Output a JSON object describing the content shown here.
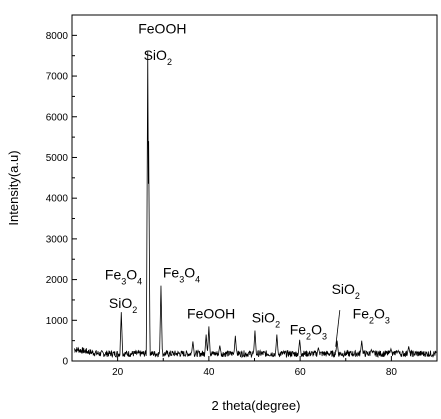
{
  "chart_data": {
    "type": "line",
    "xlabel": "2 theta(degree)",
    "ylabel": "Intensity(a.u)",
    "xlim": [
      10,
      90
    ],
    "ylim": [
      0,
      8500
    ],
    "x_ticks": [
      20,
      40,
      60,
      80
    ],
    "y_ticks": [
      0,
      1000,
      2000,
      3000,
      4000,
      5000,
      6000,
      7000,
      8000
    ],
    "x_tick_labels": [
      "20",
      "40",
      "60",
      "80"
    ],
    "y_tick_labels": [
      "0",
      "1000",
      "2000",
      "3000",
      "4000",
      "5000",
      "6000",
      "7000",
      "8000"
    ],
    "grid": false,
    "baseline_level": 180,
    "peaks": [
      {
        "x": 20.8,
        "y": 1200
      },
      {
        "x": 26.6,
        "y": 7600
      },
      {
        "x": 26.8,
        "y": 5400
      },
      {
        "x": 29.5,
        "y": 1850
      },
      {
        "x": 36.5,
        "y": 480
      },
      {
        "x": 39.4,
        "y": 650
      },
      {
        "x": 40.0,
        "y": 850
      },
      {
        "x": 42.4,
        "y": 380
      },
      {
        "x": 45.8,
        "y": 620
      },
      {
        "x": 50.1,
        "y": 750
      },
      {
        "x": 54.9,
        "y": 650
      },
      {
        "x": 59.9,
        "y": 520
      },
      {
        "x": 64.0,
        "y": 330
      },
      {
        "x": 68.1,
        "y": 500
      },
      {
        "x": 73.5,
        "y": 500
      },
      {
        "x": 75.6,
        "y": 280
      },
      {
        "x": 79.9,
        "y": 300
      },
      {
        "x": 81.5,
        "y": 260
      },
      {
        "x": 83.8,
        "y": 360
      }
    ],
    "annotations": [
      {
        "parts": [
          {
            "t": "FeOOH",
            "sub": false
          }
        ],
        "x": 29.8,
        "y": 8050
      },
      {
        "parts": [
          {
            "t": "SiO",
            "sub": false
          },
          {
            "t": "2",
            "sub": true
          }
        ],
        "x": 28.8,
        "y": 7400
      },
      {
        "parts": [
          {
            "t": "Fe",
            "sub": false
          },
          {
            "t": "3",
            "sub": true
          },
          {
            "t": "O",
            "sub": false
          },
          {
            "t": "4",
            "sub": true
          }
        ],
        "x": 21.3,
        "y": 2000
      },
      {
        "parts": [
          {
            "t": "SiO",
            "sub": false
          },
          {
            "t": "2",
            "sub": true
          }
        ],
        "x": 21.2,
        "y": 1300
      },
      {
        "parts": [
          {
            "t": "Fe",
            "sub": false
          },
          {
            "t": "3",
            "sub": true
          },
          {
            "t": "O",
            "sub": false
          },
          {
            "t": "4",
            "sub": true
          }
        ],
        "x": 34.0,
        "y": 2050
      },
      {
        "parts": [
          {
            "t": "FeOOH",
            "sub": false
          }
        ],
        "x": 40.5,
        "y": 1050
      },
      {
        "parts": [
          {
            "t": "SiO",
            "sub": false
          },
          {
            "t": "2",
            "sub": true
          }
        ],
        "x": 52.5,
        "y": 950
      },
      {
        "parts": [
          {
            "t": "Fe",
            "sub": false
          },
          {
            "t": "2",
            "sub": true
          },
          {
            "t": "O",
            "sub": false
          },
          {
            "t": "3",
            "sub": true
          }
        ],
        "x": 61.8,
        "y": 650
      },
      {
        "parts": [
          {
            "t": "SiO",
            "sub": false
          },
          {
            "t": "2",
            "sub": true
          }
        ],
        "x": 70.0,
        "y": 1650
      },
      {
        "parts": [
          {
            "t": "Fe",
            "sub": false
          },
          {
            "t": "2",
            "sub": true
          },
          {
            "t": "O",
            "sub": false
          },
          {
            "t": "3",
            "sub": true
          }
        ],
        "x": 75.6,
        "y": 1050
      }
    ],
    "leader_line": {
      "from": [
        68.7,
        1250
      ],
      "to": [
        67.8,
        350
      ]
    },
    "colors": {
      "line": "#000000",
      "axis": "#000000",
      "background": "#ffffff"
    }
  }
}
